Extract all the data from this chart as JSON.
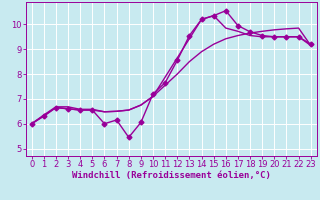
{
  "bg_color": "#c8eaf0",
  "grid_color": "#ffffff",
  "line_color": "#990099",
  "markersize": 2.5,
  "linewidth": 1.0,
  "xlabel": "Windchill (Refroidissement éolien,°C)",
  "xlabel_fontsize": 6.5,
  "tick_fontsize": 6,
  "ylabel_ticks": [
    5,
    6,
    7,
    8,
    9,
    10
  ],
  "xlabel_ticks": [
    0,
    1,
    2,
    3,
    4,
    5,
    6,
    7,
    8,
    9,
    10,
    11,
    12,
    13,
    14,
    15,
    16,
    17,
    18,
    19,
    20,
    21,
    22,
    23
  ],
  "ylim": [
    4.7,
    10.9
  ],
  "xlim": [
    -0.5,
    23.5
  ],
  "line1_x": [
    0,
    1,
    2,
    3,
    4,
    5,
    6,
    7,
    8,
    9,
    10,
    11,
    12,
    13,
    14,
    15,
    16,
    17,
    18,
    19,
    20,
    21,
    22,
    23
  ],
  "line1_y": [
    6.0,
    6.3,
    6.65,
    6.6,
    6.55,
    6.55,
    6.0,
    6.15,
    5.45,
    6.05,
    7.2,
    7.65,
    8.55,
    9.55,
    10.2,
    10.35,
    10.55,
    9.95,
    9.7,
    9.55,
    9.5,
    9.5,
    9.5,
    9.2
  ],
  "line2_x": [
    0,
    1,
    2,
    3,
    4,
    5,
    6,
    7,
    8,
    9,
    10,
    11,
    12,
    13,
    14,
    15,
    16,
    17,
    18,
    19,
    20,
    21,
    22,
    23
  ],
  "line2_y": [
    6.0,
    6.35,
    6.68,
    6.68,
    6.58,
    6.58,
    6.48,
    6.5,
    6.55,
    6.75,
    7.1,
    7.55,
    8.0,
    8.5,
    8.9,
    9.2,
    9.42,
    9.55,
    9.65,
    9.72,
    9.78,
    9.82,
    9.85,
    9.15
  ],
  "line3_x": [
    0,
    2,
    3,
    4,
    5,
    6,
    7,
    8,
    9,
    10,
    14,
    15,
    16,
    17,
    18,
    19,
    20,
    21,
    22,
    23
  ],
  "line3_y": [
    6.0,
    6.65,
    6.6,
    6.55,
    6.55,
    6.48,
    6.5,
    6.55,
    6.75,
    7.1,
    10.2,
    10.35,
    9.85,
    9.72,
    9.55,
    9.5,
    9.5,
    9.5,
    9.5,
    9.15
  ]
}
